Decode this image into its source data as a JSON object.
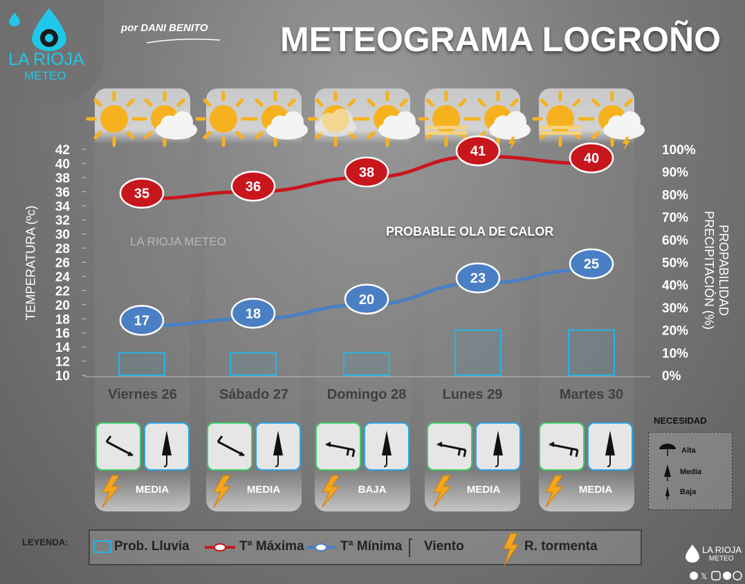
{
  "brand": {
    "name": "LA RIOJA",
    "sub": "METEO",
    "author": "por DANI BENITO",
    "watermark": "LA RIOJA METEO"
  },
  "title": "METEOGRAMA LOGROÑO",
  "annotation": "PROBABLE OLA DE CALOR",
  "axes": {
    "left_label": "TEMPERATURA (ºc)",
    "right_label": "PROPABILIDAD PRECIPITACIÓN (%)",
    "left_ticks": [
      "10",
      "12",
      "14",
      "16",
      "18",
      "20",
      "22",
      "24",
      "26",
      "28",
      "30",
      "32",
      "34",
      "36",
      "38",
      "40",
      "42"
    ],
    "right_ticks": [
      "0%",
      "10%",
      "20%",
      "30%",
      "40%",
      "50%",
      "60%",
      "70%",
      "80%",
      "90%",
      "100%"
    ]
  },
  "chart_data": {
    "type": "line",
    "categories": [
      "Viernes 26",
      "Sábado 27",
      "Domingo 28",
      "Lunes 29",
      "Martes 30"
    ],
    "series": [
      {
        "name": "Tª Máxima",
        "values": [
          35,
          36,
          38,
          41,
          40
        ],
        "color": "#c8161d",
        "axis": "left"
      },
      {
        "name": "Tª Mínima",
        "values": [
          17,
          18,
          20,
          23,
          25
        ],
        "color": "#4a7fc4",
        "axis": "left"
      },
      {
        "name": "Prob. Lluvia",
        "type": "bar",
        "values": [
          10,
          10,
          10,
          20,
          20
        ],
        "color": "#27b4e8",
        "axis": "right"
      }
    ],
    "ylim_left": [
      10,
      42
    ],
    "ylim_right": [
      0,
      100
    ]
  },
  "days": [
    {
      "label": "Viernes 26",
      "storm": "MEDIA",
      "wind": "wind-se"
    },
    {
      "label": "Sábado 27",
      "storm": "MEDIA",
      "wind": "wind-se"
    },
    {
      "label": "Domingo 28",
      "storm": "BAJA",
      "wind": "wind-w"
    },
    {
      "label": "Lunes 29",
      "storm": "MEDIA",
      "wind": "wind-w"
    },
    {
      "label": "Martes 30",
      "storm": "MEDIA",
      "wind": "wind-w"
    }
  ],
  "need": {
    "title": "NECESIDAD",
    "levels": [
      "Alta",
      "Media",
      "Baja"
    ]
  },
  "legend": {
    "title": "LEYENDA:",
    "items": [
      "Prob. Lluvia",
      "Tª Máxima",
      "Tª Mínima",
      "Viento",
      "R. tormenta"
    ]
  },
  "footer": {
    "brand": "LA RIOJA",
    "sub": "METEO"
  },
  "colors": {
    "max": "#c8161d",
    "min": "#4a7fc4",
    "rain": "#27b4e8",
    "storm": "#f4a51c",
    "brand": "#20c7e8"
  }
}
